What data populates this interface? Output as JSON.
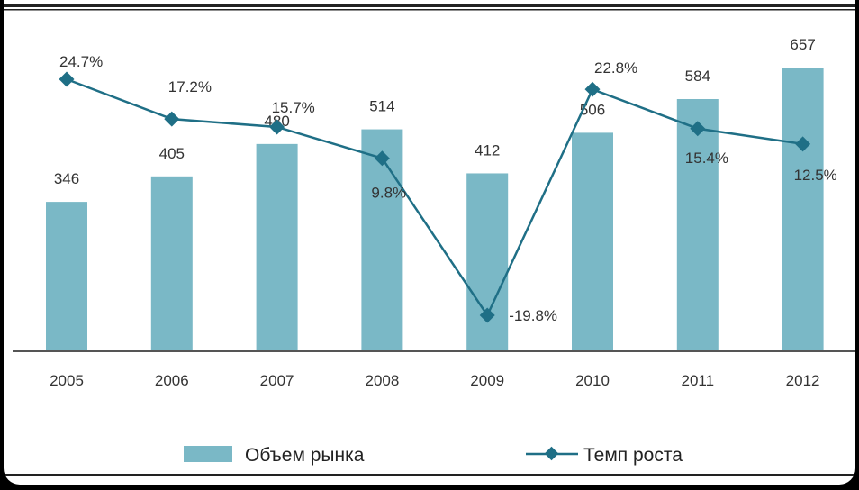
{
  "chart_data": {
    "type": "bar",
    "categories": [
      "2005",
      "2006",
      "2007",
      "2008",
      "2009",
      "2010",
      "2011",
      "2012"
    ],
    "series": [
      {
        "name": "Объем рынка",
        "type": "bar",
        "values": [
          346,
          405,
          480,
          514,
          412,
          506,
          584,
          657
        ],
        "labels": [
          "346",
          "405",
          "480",
          "514",
          "412",
          "506",
          "584",
          "657"
        ],
        "color": "#7ab8c6"
      },
      {
        "name": "Темп роста",
        "type": "line",
        "values": [
          24.7,
          17.2,
          15.7,
          9.8,
          -19.8,
          22.8,
          15.4,
          12.5
        ],
        "labels": [
          "24.7%",
          "17.2%",
          "15.7%",
          "9.8%",
          "-19.8%",
          "22.8%",
          "15.4%",
          "12.5%"
        ],
        "color": "#1f6f86"
      }
    ],
    "ylim_bars": [
      0,
      700
    ],
    "ylim_line": [
      -25,
      35
    ],
    "legend_position": "bottom",
    "grid": false
  }
}
